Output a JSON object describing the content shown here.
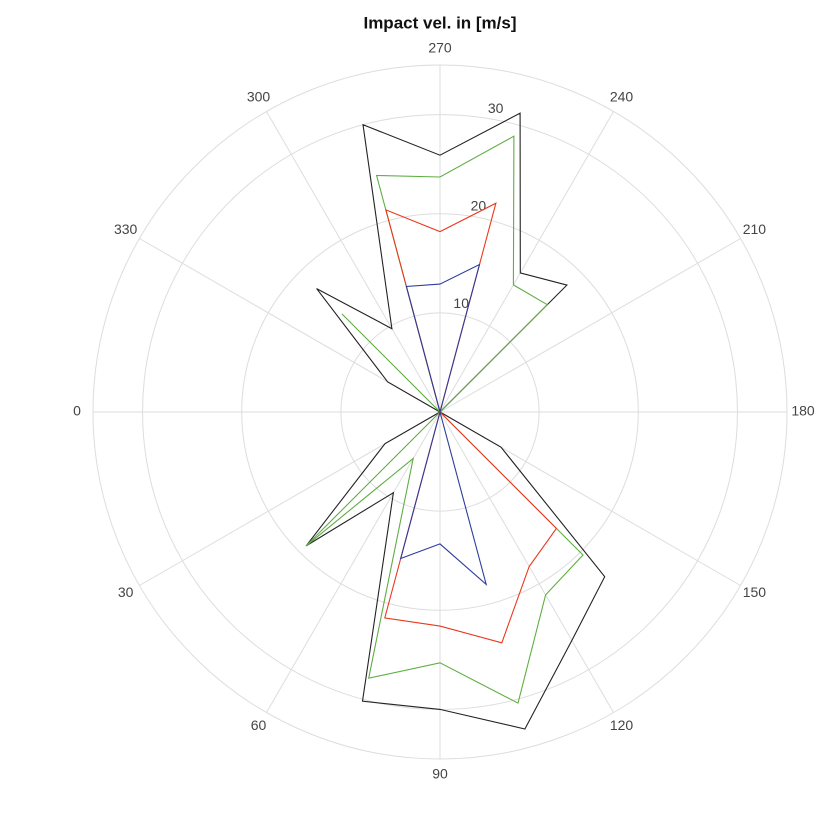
{
  "chart_data": {
    "type": "polar-line",
    "title": "Impact vel. in [m/s]",
    "theta": [
      0,
      15,
      30,
      45,
      60,
      75,
      90,
      105,
      120,
      135,
      150,
      165,
      180,
      195,
      210,
      225,
      240,
      255,
      270,
      285,
      300,
      315,
      330,
      345
    ],
    "series": [
      {
        "color": "#222222",
        "values": [
          0,
          0,
          6.4,
          19.1,
          9.4,
          30.2,
          30,
          33.1,
          26.6,
          23.5,
          7.1,
          0,
          0,
          0,
          0,
          18.1,
          16.2,
          31.2,
          25.9,
          30,
          9.7,
          17.6,
          6.1,
          0
        ]
      },
      {
        "color": "#5fae43",
        "values": [
          0,
          0,
          0,
          19.1,
          5.4,
          27.8,
          25.3,
          30.4,
          21.3,
          20.4,
          0,
          0,
          0,
          0,
          0,
          15.3,
          14.8,
          28.8,
          23.7,
          24.7,
          0,
          14,
          0,
          0
        ]
      },
      {
        "color": "#e8391d",
        "values": [
          0,
          0,
          0,
          0,
          0,
          21.5,
          21.6,
          24.1,
          18,
          16.6,
          0,
          0,
          0,
          0,
          0,
          0,
          0,
          21.8,
          18.2,
          21.1,
          0,
          0,
          0,
          0
        ]
      },
      {
        "color": "#2f3d9a",
        "values": [
          0,
          0,
          0,
          0,
          0,
          15.3,
          13.3,
          18,
          0,
          0,
          0,
          0,
          0,
          0,
          0,
          0,
          0,
          15.4,
          12.9,
          13.1,
          0,
          0,
          0,
          0
        ]
      }
    ],
    "rlim": [
      0,
      35
    ],
    "rticks": [
      10,
      20,
      30
    ],
    "xticks": [
      0,
      30,
      60,
      90,
      120,
      150,
      180,
      210,
      240,
      270,
      300,
      330
    ],
    "grid": true
  }
}
